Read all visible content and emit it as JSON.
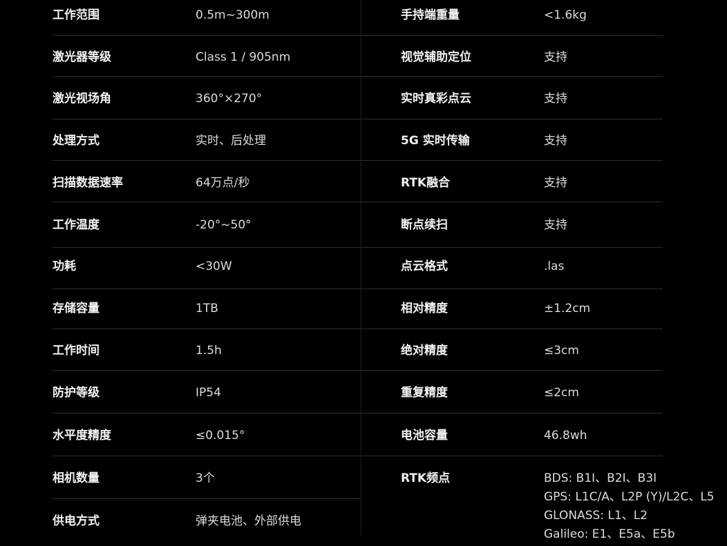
{
  "left": [
    {
      "label": "工作范围",
      "value": "0.5m~300m"
    },
    {
      "label": "激光器等级",
      "value": "Class 1 / 905nm"
    },
    {
      "label": "激光视场角",
      "value": "360°×270°"
    },
    {
      "label": "处理方式",
      "value": "实时、后处理"
    },
    {
      "label": "扫描数据速率",
      "value": "64万点/秒"
    },
    {
      "label": "工作温度",
      "value": "-20°~50°"
    },
    {
      "label": "功耗",
      "value": "<30W"
    },
    {
      "label": "存储容量",
      "value": "1TB"
    },
    {
      "label": "工作时间",
      "value": "1.5h"
    },
    {
      "label": "防护等级",
      "value": "IP54"
    },
    {
      "label": "水平度精度",
      "value": "≤0.015°"
    },
    {
      "label": "相机数量",
      "value": "3个"
    },
    {
      "label": "供电方式",
      "value": "弹夹电池、外部供电"
    }
  ],
  "right": [
    {
      "label": "手持端重量",
      "value": "<1.6kg"
    },
    {
      "label": "视觉辅助定位",
      "value": "支持"
    },
    {
      "label": "实时真彩点云",
      "value": "支持"
    },
    {
      "label": "5G 实时传输",
      "value": "支持"
    },
    {
      "label": "RTK融合",
      "value": "支持"
    },
    {
      "label": "断点续扫",
      "value": "支持"
    },
    {
      "label": "点云格式",
      "value": ".las"
    },
    {
      "label": "相对精度",
      "value": "±1.2cm"
    },
    {
      "label": "绝对精度",
      "value": "≤3cm"
    },
    {
      "label": "重复精度",
      "value": "≤2cm"
    },
    {
      "label": "电池容量",
      "value": "46.8wh"
    }
  ],
  "rtk": {
    "label": "RTK频点",
    "lines": [
      "BDS: B1I、B2I、B3I",
      "GPS: L1C/A、L2P (Y)/L2C、L5",
      "GLONASS: L1、L2",
      "Galileo: E1、E5a、E5b"
    ]
  }
}
